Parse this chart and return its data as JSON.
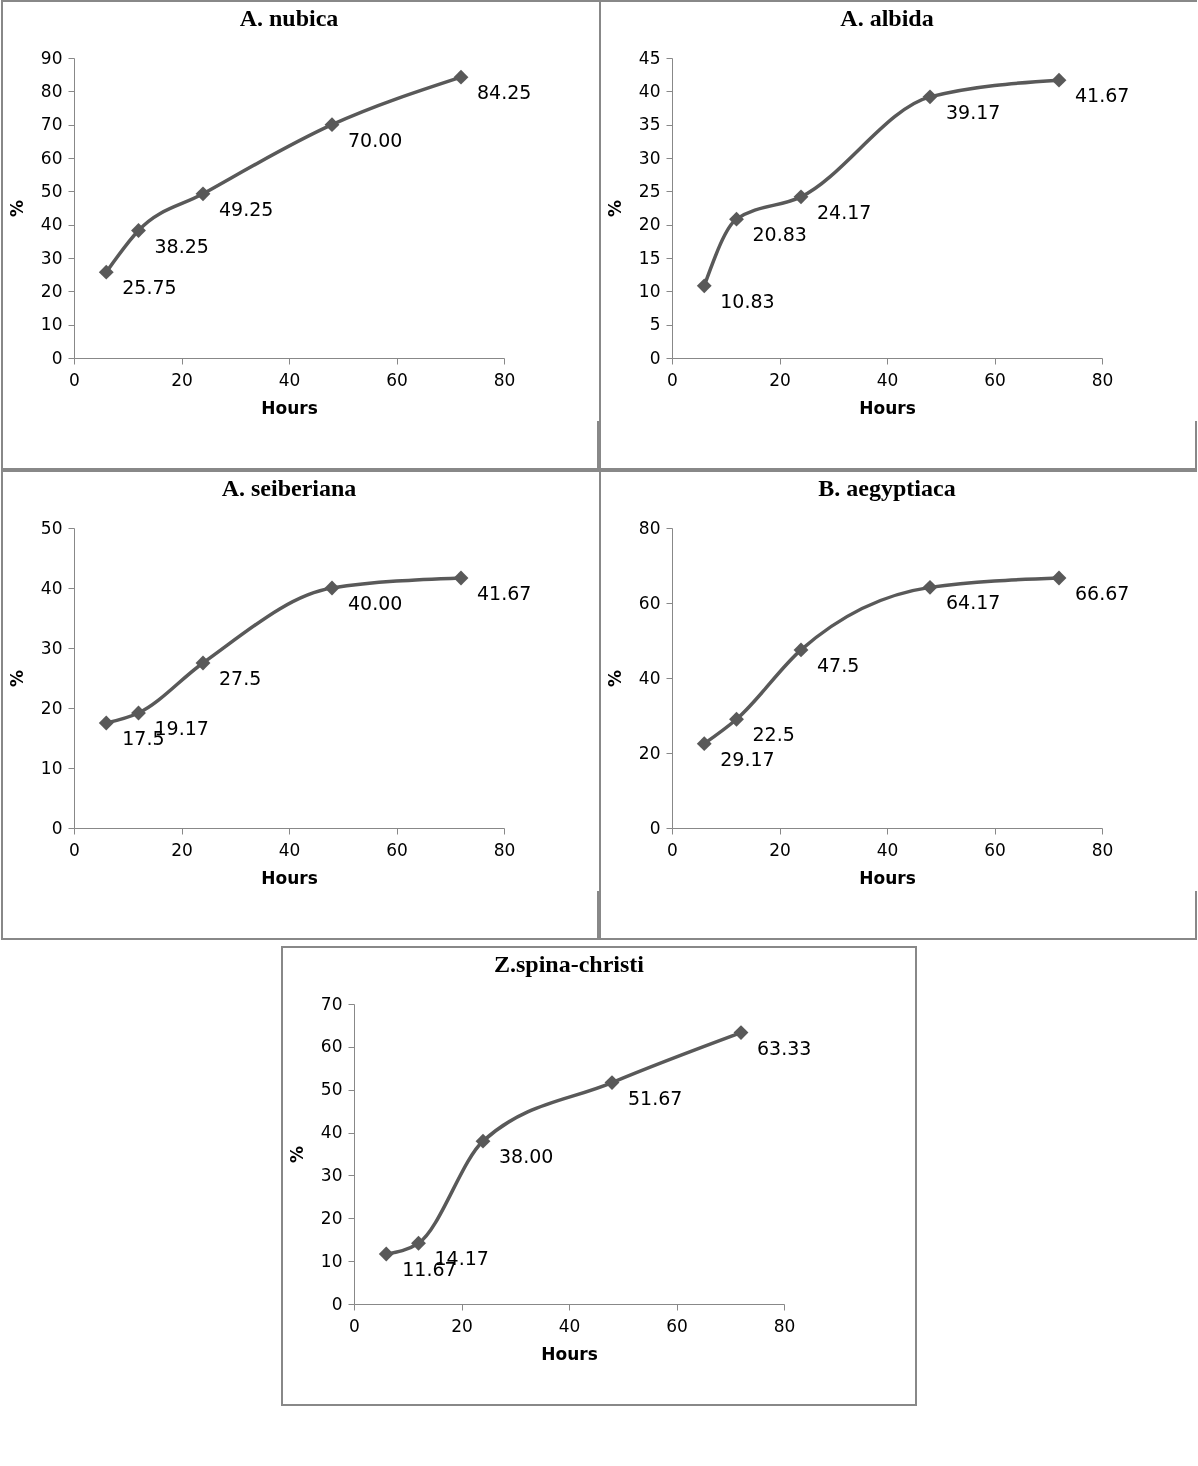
{
  "chart_data": [
    {
      "type": "line",
      "title": "A. nubica",
      "xlabel": "Hours",
      "ylabel": "%",
      "x": [
        6,
        12,
        24,
        48,
        72
      ],
      "values": [
        25.75,
        38.25,
        49.25,
        70.0,
        84.25
      ],
      "value_labels": [
        "25.75",
        "38.25",
        "49.25",
        "70.00",
        "84.25"
      ],
      "color": "#595959",
      "marker": "diamond",
      "xlim": [
        0,
        80
      ],
      "xticks": [
        0,
        20,
        40,
        60,
        80
      ],
      "ylim": [
        0,
        90
      ],
      "yticks": [
        0,
        10,
        20,
        30,
        40,
        50,
        60,
        70,
        80,
        90
      ]
    },
    {
      "type": "line",
      "title": "A. albida",
      "xlabel": "Hours",
      "ylabel": "%",
      "x": [
        6,
        12,
        24,
        48,
        72
      ],
      "values": [
        10.83,
        20.83,
        24.17,
        39.17,
        41.67
      ],
      "value_labels": [
        "10.83",
        "20.83",
        "24.17",
        "39.17",
        "41.67"
      ],
      "color": "#595959",
      "marker": "diamond",
      "xlim": [
        0,
        80
      ],
      "xticks": [
        0,
        20,
        40,
        60,
        80
      ],
      "ylim": [
        0,
        45
      ],
      "yticks": [
        0,
        5,
        10,
        15,
        20,
        25,
        30,
        35,
        40,
        45
      ]
    },
    {
      "type": "line",
      "title": "A. seiberiana",
      "xlabel": "Hours",
      "ylabel": "%",
      "x": [
        6,
        12,
        24,
        48,
        72
      ],
      "values": [
        17.5,
        19.17,
        27.5,
        40.0,
        41.67
      ],
      "value_labels": [
        "17.5",
        "19.17",
        "27.5",
        "40.00",
        "41.67"
      ],
      "color": "#595959",
      "marker": "diamond",
      "xlim": [
        0,
        80
      ],
      "xticks": [
        0,
        20,
        40,
        60,
        80
      ],
      "ylim": [
        0,
        50
      ],
      "yticks": [
        0,
        10,
        20,
        30,
        40,
        50
      ]
    },
    {
      "type": "line",
      "title": "B. aegyptiaca",
      "xlabel": "Hours",
      "ylabel": "%",
      "x": [
        6,
        12,
        24,
        48,
        72
      ],
      "values": [
        22.5,
        29,
        47.5,
        64.17,
        66.67
      ],
      "value_labels": [
        null,
        null,
        "47.5",
        "64.17",
        "66.67"
      ],
      "annotations": [
        {
          "text": "29.17",
          "x": 6,
          "y": 22.5
        },
        {
          "text": "22.5",
          "x": 12,
          "y": 29
        }
      ],
      "color": "#595959",
      "marker": "diamond",
      "xlim": [
        0,
        80
      ],
      "xticks": [
        0,
        20,
        40,
        60,
        80
      ],
      "ylim": [
        0,
        80
      ],
      "yticks": [
        0,
        20,
        40,
        60,
        80
      ]
    },
    {
      "type": "line",
      "title": "Z.spina-christi",
      "xlabel": "Hours",
      "ylabel": "%",
      "x": [
        6,
        12,
        24,
        48,
        72
      ],
      "values": [
        11.67,
        14.17,
        38.0,
        51.67,
        63.33
      ],
      "value_labels": [
        "11.67",
        "14.17",
        "38.00",
        "51.67",
        "63.33"
      ],
      "color": "#595959",
      "marker": "diamond",
      "xlim": [
        0,
        80
      ],
      "xticks": [
        0,
        20,
        40,
        60,
        80
      ],
      "ylim": [
        0,
        70
      ],
      "yticks": [
        0,
        10,
        20,
        30,
        40,
        50,
        60,
        70
      ]
    }
  ]
}
